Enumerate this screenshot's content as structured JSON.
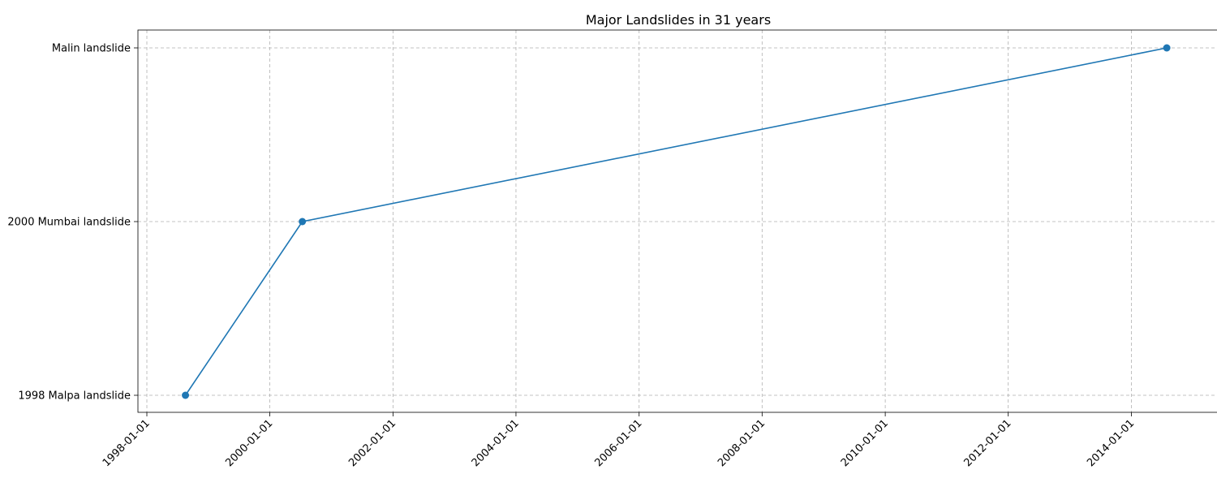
{
  "chart_data": {
    "type": "line",
    "title": "Major Landslides in 31 years",
    "xlabel": "",
    "ylabel": "",
    "x_ticks": [
      "1998-01-01",
      "2000-01-01",
      "2002-01-01",
      "2004-01-01",
      "2006-01-01",
      "2008-01-01",
      "2010-01-01",
      "2012-01-01",
      "2014-01-01"
    ],
    "y_categories": [
      "1998 Malpa landslide",
      "2000 Mumbai landslide",
      "Malin landslide"
    ],
    "xlim": [
      "1997-11-09",
      "2015-05-29"
    ],
    "grid": true,
    "series": [
      {
        "color": "#1f77b4",
        "marker": "circle",
        "points": [
          {
            "x": "1998-08-18",
            "y": "1998 Malpa landslide"
          },
          {
            "x": "2000-07-12",
            "y": "2000 Mumbai landslide"
          },
          {
            "x": "2014-07-30",
            "y": "Malin landslide"
          }
        ]
      }
    ]
  }
}
